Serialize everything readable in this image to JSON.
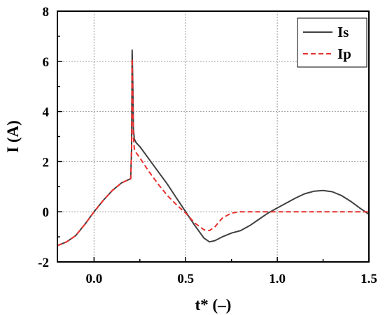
{
  "chart_data": {
    "type": "line",
    "title": "",
    "xlabel": "t* (–)",
    "ylabel": "I (A)",
    "xlim": [
      -0.2,
      1.5
    ],
    "ylim": [
      -2,
      8
    ],
    "xticks": [
      0.0,
      0.5,
      1.0,
      1.5
    ],
    "xtick_labels": [
      "0.0",
      "0.5",
      "1.0",
      "1.5"
    ],
    "yticks": [
      -2,
      0,
      2,
      4,
      6,
      8
    ],
    "ytick_labels": [
      "-2",
      "0",
      "2",
      "4",
      "6",
      "8"
    ],
    "grid": true,
    "legend_position": "top-right",
    "series": [
      {
        "name": "Is",
        "color": "#404040",
        "style": "solid",
        "x": [
          -0.2,
          -0.15,
          -0.1,
          -0.05,
          0.0,
          0.05,
          0.1,
          0.15,
          0.2,
          0.205,
          0.208,
          0.212,
          0.215,
          0.22,
          0.23,
          0.25,
          0.3,
          0.35,
          0.4,
          0.45,
          0.5,
          0.55,
          0.6,
          0.63,
          0.66,
          0.7,
          0.75,
          0.8,
          0.85,
          0.9,
          0.95,
          1.0,
          1.05,
          1.1,
          1.15,
          1.2,
          1.25,
          1.3,
          1.35,
          1.4,
          1.45,
          1.5
        ],
        "y": [
          -1.35,
          -1.2,
          -0.95,
          -0.5,
          0.0,
          0.45,
          0.85,
          1.15,
          1.32,
          2.5,
          6.45,
          5.0,
          3.3,
          2.9,
          2.75,
          2.6,
          2.1,
          1.6,
          1.1,
          0.55,
          0.0,
          -0.55,
          -1.05,
          -1.2,
          -1.15,
          -1.0,
          -0.85,
          -0.75,
          -0.55,
          -0.3,
          -0.05,
          0.15,
          0.35,
          0.55,
          0.72,
          0.82,
          0.85,
          0.8,
          0.65,
          0.42,
          0.15,
          -0.1
        ]
      },
      {
        "name": "Ip",
        "color": "#e8312f",
        "style": "dashed",
        "x": [
          -0.2,
          -0.15,
          -0.1,
          -0.05,
          0.0,
          0.05,
          0.1,
          0.15,
          0.2,
          0.205,
          0.208,
          0.212,
          0.215,
          0.22,
          0.23,
          0.25,
          0.3,
          0.35,
          0.4,
          0.45,
          0.5,
          0.55,
          0.6,
          0.63,
          0.66,
          0.7,
          0.75,
          0.8,
          0.85,
          0.9,
          1.0,
          1.1,
          1.2,
          1.3,
          1.4,
          1.5
        ],
        "y": [
          -1.35,
          -1.2,
          -0.95,
          -0.5,
          0.0,
          0.45,
          0.85,
          1.15,
          1.32,
          2.5,
          6.1,
          4.5,
          3.0,
          2.5,
          2.35,
          2.15,
          1.6,
          1.1,
          0.65,
          0.28,
          -0.05,
          -0.45,
          -0.72,
          -0.75,
          -0.6,
          -0.25,
          -0.05,
          0.0,
          0.0,
          0.0,
          0.0,
          0.0,
          0.0,
          0.0,
          0.0,
          0.0
        ]
      }
    ]
  }
}
